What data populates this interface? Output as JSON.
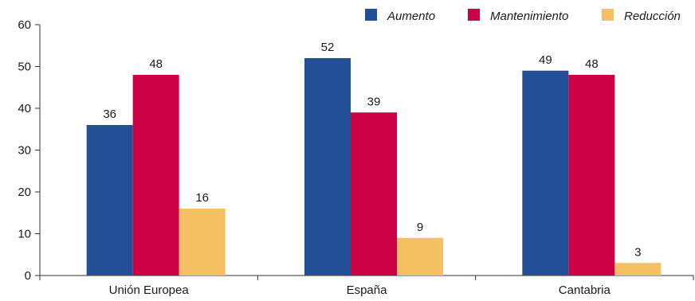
{
  "chart_data": {
    "type": "bar",
    "title": "",
    "xlabel": "",
    "ylabel": "",
    "categories": [
      "Unión Europea",
      "España",
      "Cantabria"
    ],
    "series": [
      {
        "name": "Aumento",
        "values": [
          36,
          52,
          49
        ],
        "color": "#234f96"
      },
      {
        "name": "Mantenimiento",
        "values": [
          48,
          39,
          48
        ],
        "color": "#cc0044"
      },
      {
        "name": "Reducción",
        "values": [
          16,
          9,
          3
        ],
        "color": "#f5c062"
      }
    ],
    "ylim": [
      0,
      60
    ],
    "yticks": [
      0,
      10,
      20,
      30,
      40,
      50,
      60
    ],
    "grid": false,
    "legend_position": "top-right",
    "data_labels": true
  }
}
